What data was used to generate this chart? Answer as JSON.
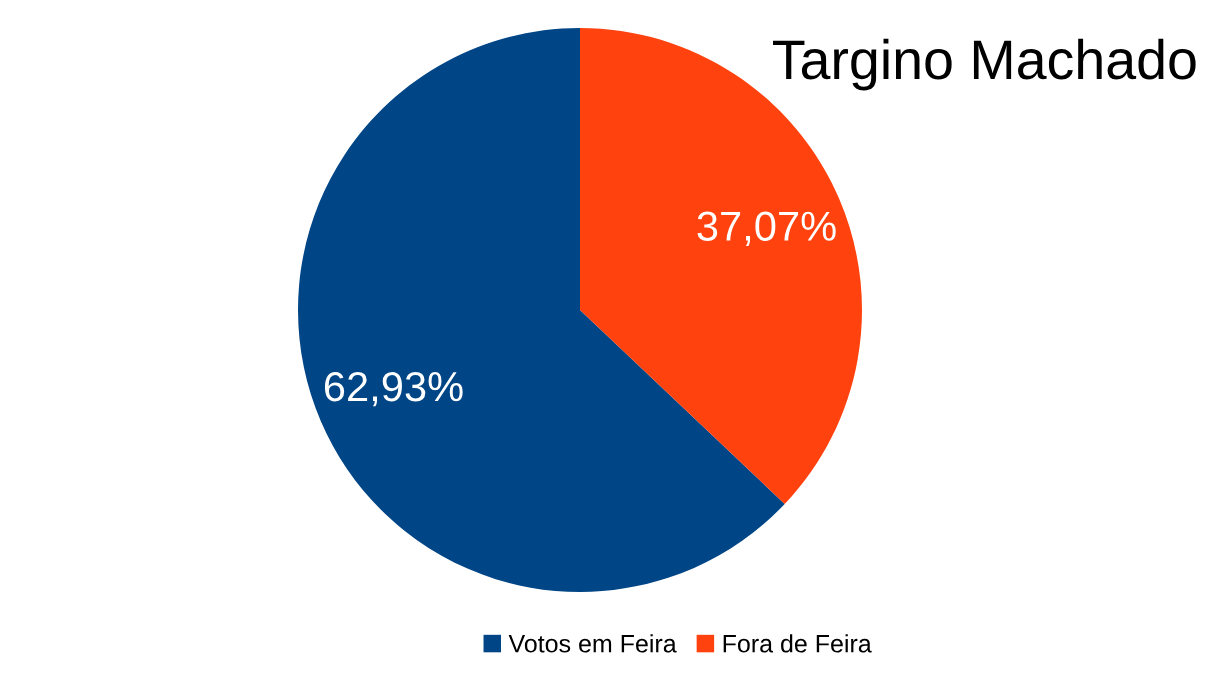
{
  "chart_data": {
    "type": "pie",
    "title": "Targino Machado",
    "categories": [
      "Votos em Feira",
      "Fora de Feira"
    ],
    "values": [
      62.93,
      37.07
    ],
    "colors": [
      "#004586",
      "#ff420e"
    ],
    "value_labels": [
      "62,93%",
      "37,07%"
    ],
    "legend": "bottom"
  }
}
